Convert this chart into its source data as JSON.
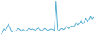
{
  "values": [
    3.5,
    4.2,
    5.8,
    5.2,
    6.5,
    7.8,
    6.2,
    4.5,
    5.0,
    4.8,
    5.2,
    6.0,
    5.5,
    4.8,
    5.5,
    5.2,
    4.8,
    5.5,
    6.0,
    5.5,
    5.8,
    5.5,
    5.2,
    5.8,
    6.2,
    5.5,
    5.0,
    5.5,
    6.0,
    5.5,
    5.2,
    5.5,
    5.8,
    5.5,
    5.2,
    18.0,
    5.5,
    5.0,
    5.8,
    6.0,
    5.5,
    6.2,
    6.8,
    6.0,
    6.5,
    7.0,
    6.5,
    7.2,
    8.5,
    7.5,
    8.2,
    9.5,
    8.0,
    8.8,
    10.5,
    9.0,
    9.8,
    11.2,
    10.0,
    10.8
  ],
  "line_color": "#5aafd4",
  "bg_color": "#ffffff",
  "linewidth": 0.75
}
